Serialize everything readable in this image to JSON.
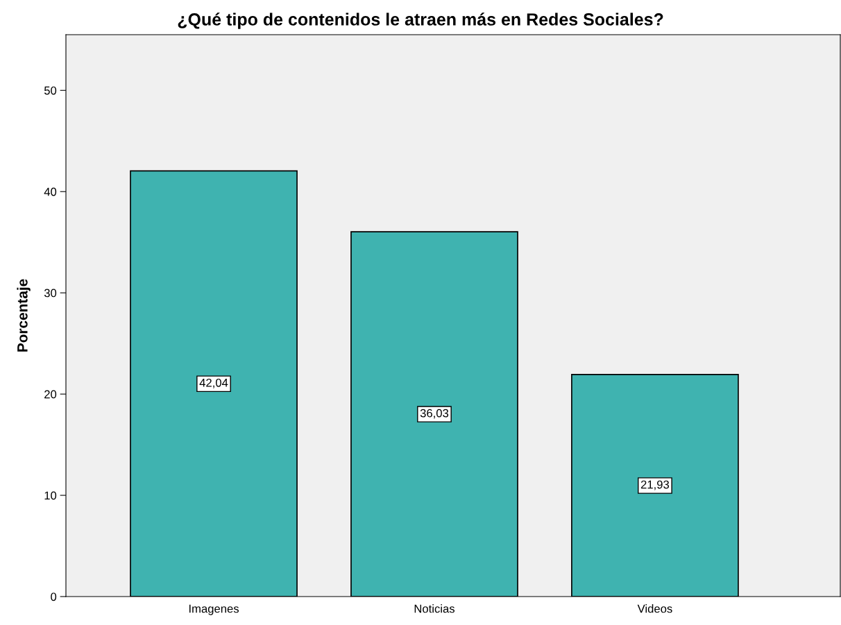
{
  "chart_data": {
    "type": "bar",
    "title": "¿Qué tipo de contenidos le atraen más en Redes Sociales?",
    "ylabel": "Porcentaje",
    "categories": [
      "Imagenes",
      "Noticias",
      "Videos"
    ],
    "values": [
      42.04,
      36.03,
      21.93
    ],
    "value_labels": [
      "42,04",
      "36,03",
      "21,93"
    ],
    "color": "#3fb3b0",
    "ylim": [
      0,
      55.5
    ],
    "yticks": [
      0,
      10,
      20,
      30,
      40,
      50
    ],
    "grid": false
  }
}
